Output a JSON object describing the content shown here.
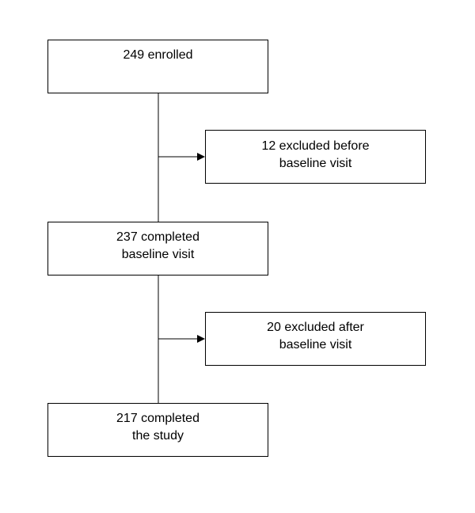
{
  "flowchart": {
    "enrolled": {
      "lines": [
        "249 enrolled"
      ]
    },
    "excluded_before": {
      "lines": [
        "12 excluded before",
        "baseline visit"
      ]
    },
    "completed_baseline": {
      "lines": [
        "237 completed",
        "baseline visit"
      ]
    },
    "excluded_after": {
      "lines": [
        "20 excluded after",
        "baseline visit"
      ]
    },
    "completed_study": {
      "lines": [
        "217 completed",
        "the study"
      ]
    }
  },
  "colors": {
    "stroke": "#000000",
    "background": "#ffffff"
  }
}
